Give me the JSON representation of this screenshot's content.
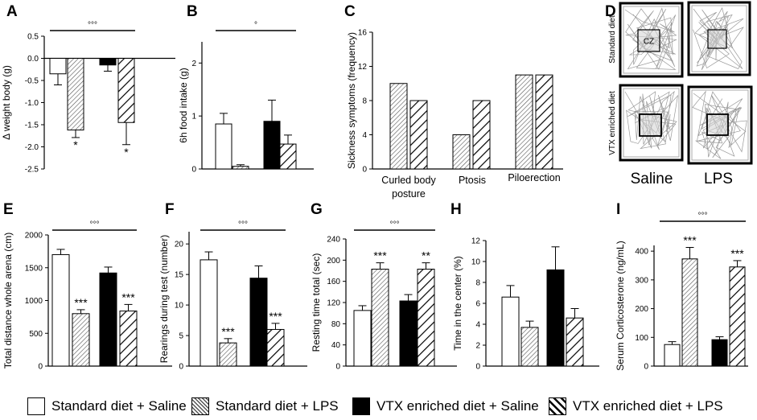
{
  "groups": [
    "Standard diet + Saline",
    "Standard diet + LPS",
    "VTX enriched diet + Saline",
    "VTX enriched diet + LPS"
  ],
  "colors": {
    "black": "#000000",
    "white": "#ffffff",
    "grey": "#888888"
  },
  "chart_data": [
    {
      "id": "A",
      "type": "bar",
      "letter": "A",
      "ylabel": "Δ weight body (g)",
      "ylim": [
        -2.5,
        0.5
      ],
      "yticks": [
        "0.5",
        "0.0",
        "-0.5",
        "-1.0",
        "-1.5",
        "-2.0",
        "-2.5"
      ],
      "values": [
        -0.35,
        -1.62,
        -0.15,
        -1.45
      ],
      "errors": [
        0.25,
        0.17,
        0.14,
        0.5
      ],
      "stars": [
        "",
        "*",
        "",
        "*"
      ],
      "sig_line": "°°°"
    },
    {
      "id": "B",
      "type": "bar",
      "letter": "B",
      "ylabel": "6h food intake (g)",
      "ylim": [
        0,
        2.4
      ],
      "yticks": [
        "0",
        "1",
        "2"
      ],
      "values": [
        0.85,
        0.05,
        0.9,
        0.47
      ],
      "errors": [
        0.2,
        0.03,
        0.4,
        0.17
      ],
      "stars": [
        "",
        "",
        "",
        ""
      ],
      "sig_line": "°"
    },
    {
      "id": "C",
      "type": "bar",
      "letter": "C",
      "ylabel": "Sickness symptoms (frequency)",
      "ylim": [
        0,
        16
      ],
      "yticks": [
        "0",
        "4",
        "8",
        "12",
        "16"
      ],
      "categories": [
        "Curled body posture",
        "Ptosis",
        "Piloerection"
      ],
      "series": [
        {
          "name": "Standard diet + LPS",
          "values": [
            10,
            4,
            11
          ]
        },
        {
          "name": "VTX enriched diet + LPS",
          "values": [
            8,
            8,
            11
          ]
        }
      ]
    },
    {
      "id": "E",
      "type": "bar",
      "letter": "E",
      "ylabel": "Total distance whole arena (cm)",
      "ylim": [
        0,
        2000
      ],
      "yticks": [
        "0",
        "500",
        "1000",
        "1500",
        "2000"
      ],
      "values": [
        1700,
        800,
        1420,
        840
      ],
      "errors": [
        80,
        60,
        90,
        100
      ],
      "stars": [
        "",
        "***",
        "",
        "***"
      ],
      "sig_line": "°°°"
    },
    {
      "id": "F",
      "type": "bar",
      "letter": "F",
      "ylabel": "Rearings during test (number)",
      "ylim": [
        0,
        22
      ],
      "yticks": [
        "0",
        "5",
        "10",
        "15",
        "20"
      ],
      "values": [
        17.4,
        3.8,
        14.4,
        6
      ],
      "errors": [
        1.3,
        0.7,
        2,
        1
      ],
      "stars": [
        "",
        "***",
        "",
        "***"
      ],
      "sig_line": "°°°"
    },
    {
      "id": "G",
      "type": "bar",
      "letter": "G",
      "ylabel": "Resting time total (sec)",
      "ylim": [
        0,
        240
      ],
      "yticks": [
        "0",
        "40",
        "80",
        "120",
        "160",
        "200",
        "240"
      ],
      "values": [
        105,
        183,
        123,
        183
      ],
      "errors": [
        9,
        12,
        12,
        12
      ],
      "stars": [
        "",
        "***",
        "",
        "**"
      ],
      "sig_line": "°°°"
    },
    {
      "id": "H",
      "type": "bar",
      "letter": "H",
      "ylabel": "Time in the center (%)",
      "ylim": [
        0,
        12
      ],
      "yticks": [
        "0",
        "2",
        "4",
        "6",
        "8",
        "10",
        "12"
      ],
      "values": [
        6.6,
        3.7,
        9.2,
        4.6
      ],
      "errors": [
        1.1,
        0.6,
        2.2,
        0.9
      ],
      "stars": [
        "",
        "",
        "",
        ""
      ],
      "sig_line": ""
    },
    {
      "id": "I",
      "type": "bar",
      "letter": "I",
      "ylabel": "Serum Corticosterone (ng/mL)",
      "ylim": [
        0,
        420
      ],
      "yticks": [
        "0",
        "100",
        "200",
        "300",
        "400"
      ],
      "values": [
        75,
        373,
        92,
        345
      ],
      "errors": [
        10,
        40,
        10,
        22
      ],
      "stars": [
        "",
        "***",
        "",
        "***"
      ],
      "sig_line": "°°°"
    }
  ],
  "panel_d": {
    "letter": "D",
    "row_labels": [
      "Standard diet",
      "VTX enriched diet"
    ],
    "col_labels": [
      "Saline",
      "LPS"
    ],
    "cz_label": "CZ"
  }
}
